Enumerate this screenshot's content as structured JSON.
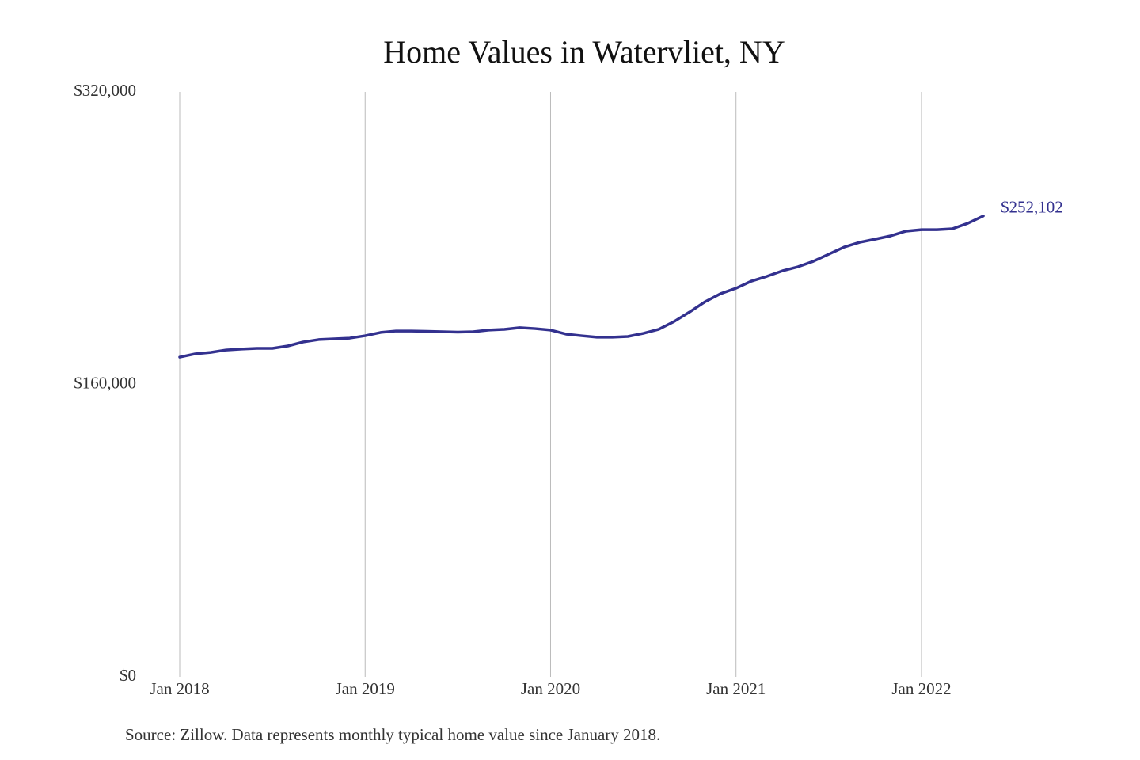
{
  "chart_data": {
    "type": "line",
    "title": "Home Values in Watervliet, NY",
    "source": "Source: Zillow. Data represents monthly typical home value since January 2018.",
    "x": [
      "2018-01",
      "2018-02",
      "2018-03",
      "2018-04",
      "2018-05",
      "2018-06",
      "2018-07",
      "2018-08",
      "2018-09",
      "2018-10",
      "2018-11",
      "2018-12",
      "2019-01",
      "2019-02",
      "2019-03",
      "2019-04",
      "2019-05",
      "2019-06",
      "2019-07",
      "2019-08",
      "2019-09",
      "2019-10",
      "2019-11",
      "2019-12",
      "2020-01",
      "2020-02",
      "2020-03",
      "2020-04",
      "2020-05",
      "2020-06",
      "2020-07",
      "2020-08",
      "2020-09",
      "2020-10",
      "2020-11",
      "2020-12",
      "2021-01",
      "2021-02",
      "2021-03",
      "2021-04",
      "2021-05",
      "2021-06",
      "2021-07",
      "2021-08",
      "2021-09",
      "2021-10",
      "2021-11",
      "2021-12",
      "2022-01",
      "2022-02",
      "2022-03",
      "2022-04",
      "2022-05"
    ],
    "series": [
      {
        "name": "Home value",
        "color": "#33318f",
        "values": [
          174900,
          176700,
          177500,
          178800,
          179300,
          179700,
          179700,
          181000,
          183200,
          184500,
          184900,
          185300,
          186600,
          188400,
          189200,
          189200,
          189000,
          188800,
          188600,
          188800,
          189700,
          190100,
          191000,
          190500,
          189700,
          187500,
          186600,
          185800,
          185800,
          186200,
          187900,
          190100,
          194400,
          199600,
          205200,
          209600,
          212600,
          216500,
          219100,
          222100,
          224300,
          227300,
          231200,
          235100,
          237700,
          239400,
          241200,
          243800,
          244600,
          244600,
          245100,
          248100,
          252102
        ],
        "value_labels": [
          null,
          null,
          null,
          null,
          null,
          null,
          null,
          null,
          null,
          null,
          null,
          null,
          null,
          null,
          null,
          null,
          null,
          null,
          null,
          null,
          null,
          null,
          null,
          null,
          null,
          null,
          null,
          null,
          null,
          null,
          null,
          null,
          null,
          null,
          null,
          null,
          null,
          null,
          null,
          null,
          null,
          null,
          null,
          null,
          null,
          null,
          null,
          null,
          null,
          null,
          null,
          null,
          "$252,102"
        ]
      }
    ],
    "ylim": [
      0,
      320000
    ],
    "yticks": [
      {
        "value": 0,
        "label": "$0"
      },
      {
        "value": 160000,
        "label": "$160,000"
      },
      {
        "value": 320000,
        "label": "$320,000"
      }
    ],
    "xticks": [
      {
        "value": "2018-01",
        "label": "Jan 2018"
      },
      {
        "value": "2019-01",
        "label": "Jan 2019"
      },
      {
        "value": "2020-01",
        "label": "Jan 2020"
      },
      {
        "value": "2021-01",
        "label": "Jan 2021"
      },
      {
        "value": "2022-01",
        "label": "Jan 2022"
      }
    ],
    "grid": "x"
  }
}
